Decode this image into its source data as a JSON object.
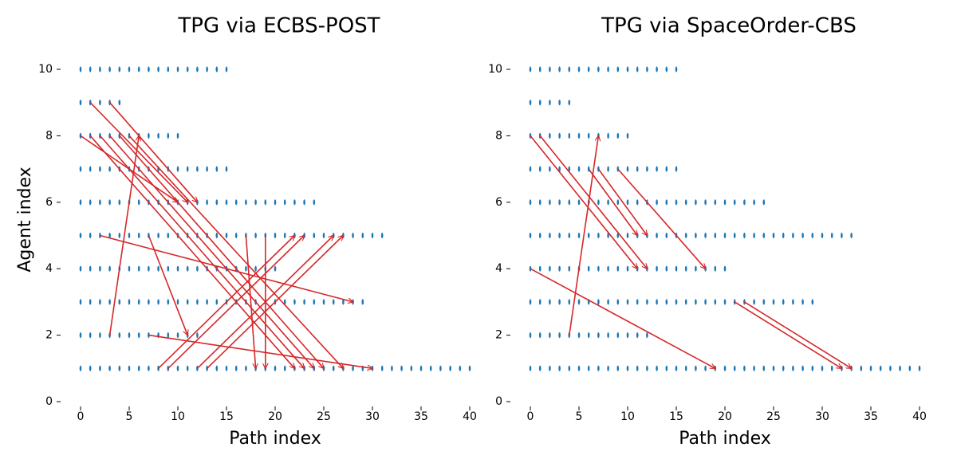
{
  "chart_data": [
    {
      "type": "scatter",
      "title": "TPG via ECBS-POST",
      "xlabel": "Path index",
      "ylabel": "Agent index",
      "xlim": [
        0,
        40
      ],
      "ylim": [
        0,
        10
      ],
      "xticks": [
        0,
        5,
        10,
        15,
        20,
        25,
        30,
        35,
        40
      ],
      "yticks": [
        0,
        2,
        4,
        6,
        8,
        10
      ],
      "grid": false,
      "point_color": "#1f77b4",
      "edge_color": "#d62728",
      "path_lengths": [
        {
          "agent": 1,
          "last_index": 40
        },
        {
          "agent": 2,
          "last_index": 12
        },
        {
          "agent": 3,
          "last_index": 29
        },
        {
          "agent": 4,
          "last_index": 20
        },
        {
          "agent": 5,
          "last_index": 31
        },
        {
          "agent": 6,
          "last_index": 24
        },
        {
          "agent": 7,
          "last_index": 15
        },
        {
          "agent": 8,
          "last_index": 10
        },
        {
          "agent": 9,
          "last_index": 4
        },
        {
          "agent": 10,
          "last_index": 15
        }
      ],
      "edges": [
        {
          "from": [
            1,
            9
          ],
          "to": [
            11,
            6
          ]
        },
        {
          "from": [
            3,
            9
          ],
          "to": [
            12,
            6
          ]
        },
        {
          "from": [
            0,
            8
          ],
          "to": [
            10,
            6
          ]
        },
        {
          "from": [
            1,
            8
          ],
          "to": [
            22,
            1
          ]
        },
        {
          "from": [
            2,
            8
          ],
          "to": [
            23,
            1
          ]
        },
        {
          "from": [
            3,
            8
          ],
          "to": [
            24,
            1
          ]
        },
        {
          "from": [
            4,
            8
          ],
          "to": [
            25,
            1
          ]
        },
        {
          "from": [
            5,
            8
          ],
          "to": [
            27,
            1
          ]
        },
        {
          "from": [
            3,
            2
          ],
          "to": [
            6,
            8
          ]
        },
        {
          "from": [
            2,
            5
          ],
          "to": [
            28,
            3
          ]
        },
        {
          "from": [
            7,
            5
          ],
          "to": [
            11,
            2
          ]
        },
        {
          "from": [
            7,
            2
          ],
          "to": [
            30,
            1
          ]
        },
        {
          "from": [
            8,
            1
          ],
          "to": [
            22,
            5
          ]
        },
        {
          "from": [
            9,
            1
          ],
          "to": [
            23,
            5
          ]
        },
        {
          "from": [
            12,
            1
          ],
          "to": [
            26,
            5
          ]
        },
        {
          "from": [
            13,
            1
          ],
          "to": [
            27,
            5
          ]
        },
        {
          "from": [
            17,
            5
          ],
          "to": [
            18,
            1
          ]
        },
        {
          "from": [
            19,
            5
          ],
          "to": [
            19,
            1
          ]
        }
      ]
    },
    {
      "type": "scatter",
      "title": "TPG via SpaceOrder-CBS",
      "xlabel": "Path index",
      "ylabel": "",
      "xlim": [
        0,
        40
      ],
      "ylim": [
        0,
        10
      ],
      "xticks": [
        0,
        5,
        10,
        15,
        20,
        25,
        30,
        35,
        40
      ],
      "yticks": [
        0,
        2,
        4,
        6,
        8,
        10
      ],
      "grid": false,
      "point_color": "#1f77b4",
      "edge_color": "#d62728",
      "path_lengths": [
        {
          "agent": 1,
          "last_index": 40
        },
        {
          "agent": 2,
          "last_index": 12
        },
        {
          "agent": 3,
          "last_index": 29
        },
        {
          "agent": 4,
          "last_index": 20
        },
        {
          "agent": 5,
          "last_index": 33
        },
        {
          "agent": 6,
          "last_index": 24
        },
        {
          "agent": 7,
          "last_index": 15
        },
        {
          "agent": 8,
          "last_index": 10
        },
        {
          "agent": 9,
          "last_index": 4
        },
        {
          "agent": 10,
          "last_index": 15
        }
      ],
      "edges": [
        {
          "from": [
            0,
            8
          ],
          "to": [
            11,
            4
          ]
        },
        {
          "from": [
            1,
            8
          ],
          "to": [
            12,
            4
          ]
        },
        {
          "from": [
            6,
            7
          ],
          "to": [
            11,
            5
          ]
        },
        {
          "from": [
            7,
            7
          ],
          "to": [
            12,
            5
          ]
        },
        {
          "from": [
            9,
            7
          ],
          "to": [
            18,
            4
          ]
        },
        {
          "from": [
            4,
            2
          ],
          "to": [
            7,
            8
          ]
        },
        {
          "from": [
            0,
            4
          ],
          "to": [
            19,
            1
          ]
        },
        {
          "from": [
            21,
            3
          ],
          "to": [
            32,
            1
          ]
        },
        {
          "from": [
            22,
            3
          ],
          "to": [
            33,
            1
          ]
        }
      ]
    }
  ]
}
